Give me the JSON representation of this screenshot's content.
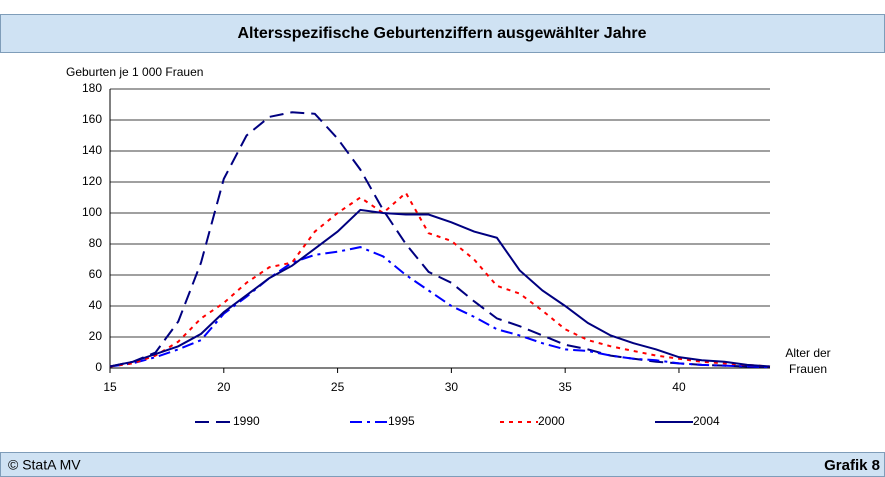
{
  "chart_data": {
    "type": "line",
    "title": "Altersspezifische Geburtenziffern ausgewählter Jahre",
    "y_label": "Geburten je 1 000 Frauen",
    "x_label_lines": [
      "Alter der",
      "Frauen"
    ],
    "footer_left": "© StatA MV",
    "footer_right": "Grafik 8",
    "x": [
      15,
      16,
      17,
      18,
      19,
      20,
      21,
      22,
      23,
      24,
      25,
      26,
      27,
      28,
      29,
      30,
      31,
      32,
      33,
      34,
      35,
      36,
      37,
      38,
      39,
      40,
      41,
      42,
      43,
      44
    ],
    "xlim": [
      15,
      44
    ],
    "xticks": [
      15,
      20,
      25,
      30,
      35,
      40
    ],
    "ylim": [
      0,
      180
    ],
    "yticks": [
      0,
      20,
      40,
      60,
      80,
      100,
      120,
      140,
      160,
      180
    ],
    "grid": true,
    "series": [
      {
        "name": "1990",
        "color": "#000080",
        "dash": "14,7",
        "values": [
          1,
          4,
          10,
          30,
          68,
          122,
          150,
          162,
          165,
          164,
          148,
          128,
          102,
          80,
          62,
          55,
          43,
          32,
          27,
          21,
          15,
          12,
          8,
          6,
          4,
          3,
          2,
          1.5,
          1,
          0.5
        ]
      },
      {
        "name": "1995",
        "color": "#0000ff",
        "dash": "12,5,3,5",
        "values": [
          1,
          3,
          7,
          12,
          18,
          35,
          46,
          58,
          68,
          73,
          75,
          78,
          72,
          60,
          50,
          40,
          33,
          25,
          21,
          16,
          12,
          11,
          8,
          6,
          5,
          3,
          2,
          1.5,
          1,
          0.5
        ]
      },
      {
        "name": "2000",
        "color": "#ff0000",
        "dash": "4,5",
        "values": [
          1,
          3,
          8,
          17,
          32,
          42,
          55,
          65,
          68,
          88,
          100,
          110,
          100,
          113,
          87,
          82,
          70,
          53,
          48,
          37,
          25,
          18,
          14,
          11,
          8,
          6,
          4,
          3,
          2,
          1
        ]
      },
      {
        "name": "2004",
        "color": "#000080",
        "dash": "",
        "values": [
          1,
          4,
          9,
          14,
          22,
          36,
          47,
          58,
          66,
          77,
          88,
          102,
          100,
          99,
          99,
          94,
          88,
          84,
          63,
          50,
          40,
          29,
          21,
          16,
          12,
          7,
          5,
          4,
          2,
          1
        ]
      }
    ]
  }
}
